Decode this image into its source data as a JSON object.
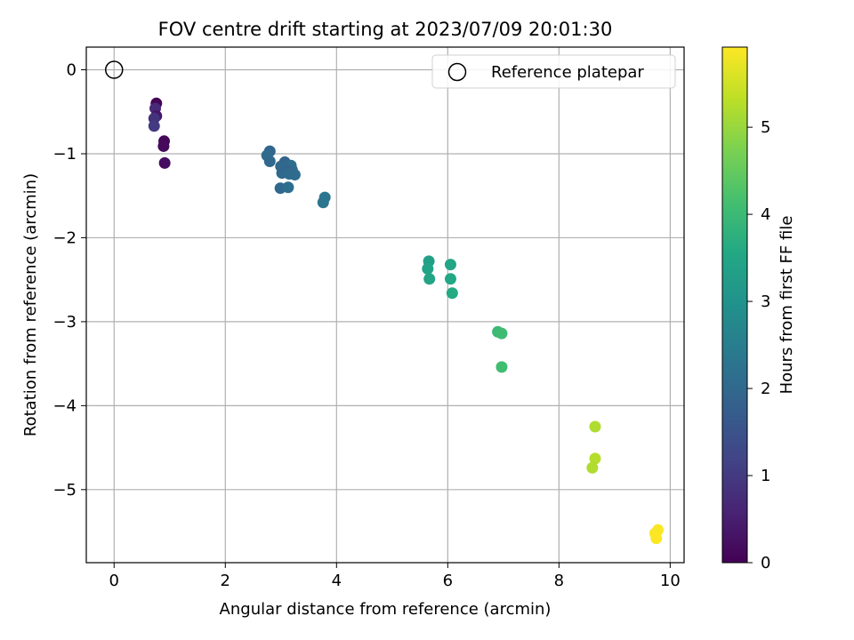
{
  "chart_data": {
    "type": "scatter",
    "title": "FOV centre drift starting at 2023/07/09 20:01:30",
    "xlabel": "Angular distance from reference (arcmin)",
    "ylabel": "Rotation from reference (arcmin)",
    "xlim": [
      -0.5,
      10.25
    ],
    "ylim": [
      -5.87,
      0.27
    ],
    "xticks": [
      0,
      2,
      4,
      6,
      8,
      10
    ],
    "xtick_labels": [
      "0",
      "2",
      "4",
      "6",
      "8",
      "10"
    ],
    "yticks": [
      0,
      -1,
      -2,
      -3,
      -4,
      -5
    ],
    "ytick_labels": [
      "0",
      "−1",
      "−2",
      "−3",
      "−4",
      "−5"
    ],
    "grid": true,
    "legend": {
      "placement": "top-right",
      "entries": [
        "Reference platepar"
      ]
    },
    "reference_point": {
      "x": 0,
      "y": 0,
      "label": "Reference platepar"
    },
    "colorbar": {
      "label": "Hours from first FF file",
      "colormap": "viridis",
      "range": [
        0,
        5.92
      ],
      "ticks": [
        0,
        1,
        2,
        3,
        4,
        5
      ],
      "tick_labels": [
        "0",
        "1",
        "2",
        "3",
        "4",
        "5"
      ]
    },
    "points": [
      {
        "x": 0.76,
        "y": -0.4,
        "c": 0.05
      },
      {
        "x": 0.74,
        "y": -0.46,
        "c": 0.7
      },
      {
        "x": 0.76,
        "y": -0.55,
        "c": 0.35
      },
      {
        "x": 0.72,
        "y": -0.58,
        "c": 0.85
      },
      {
        "x": 0.72,
        "y": -0.67,
        "c": 1.0
      },
      {
        "x": 0.9,
        "y": -0.85,
        "c": 0.1
      },
      {
        "x": 0.89,
        "y": -0.91,
        "c": 0.15
      },
      {
        "x": 0.91,
        "y": -1.11,
        "c": 0.2
      },
      {
        "x": 2.8,
        "y": -0.97,
        "c": 1.95
      },
      {
        "x": 2.75,
        "y": -1.02,
        "c": 2.05
      },
      {
        "x": 2.8,
        "y": -1.09,
        "c": 2.0
      },
      {
        "x": 3.07,
        "y": -1.1,
        "c": 1.9
      },
      {
        "x": 3.18,
        "y": -1.14,
        "c": 2.1
      },
      {
        "x": 3.0,
        "y": -1.15,
        "c": 1.95
      },
      {
        "x": 3.05,
        "y": -1.17,
        "c": 2.0
      },
      {
        "x": 3.2,
        "y": -1.19,
        "c": 2.05
      },
      {
        "x": 3.1,
        "y": -1.21,
        "c": 1.9
      },
      {
        "x": 3.02,
        "y": -1.23,
        "c": 2.0
      },
      {
        "x": 3.25,
        "y": -1.25,
        "c": 2.1
      },
      {
        "x": 3.15,
        "y": -1.24,
        "c": 2.05
      },
      {
        "x": 2.99,
        "y": -1.41,
        "c": 2.0
      },
      {
        "x": 3.13,
        "y": -1.4,
        "c": 2.1
      },
      {
        "x": 3.79,
        "y": -1.52,
        "c": 2.3
      },
      {
        "x": 3.76,
        "y": -1.58,
        "c": 2.3
      },
      {
        "x": 5.66,
        "y": -2.28,
        "c": 3.35
      },
      {
        "x": 5.64,
        "y": -2.37,
        "c": 3.4
      },
      {
        "x": 5.67,
        "y": -2.49,
        "c": 3.45
      },
      {
        "x": 6.05,
        "y": -2.32,
        "c": 3.5
      },
      {
        "x": 6.05,
        "y": -2.49,
        "c": 3.55
      },
      {
        "x": 6.08,
        "y": -2.66,
        "c": 3.6
      },
      {
        "x": 6.9,
        "y": -3.12,
        "c": 4.0
      },
      {
        "x": 6.97,
        "y": -3.14,
        "c": 4.05
      },
      {
        "x": 6.97,
        "y": -3.54,
        "c": 4.1
      },
      {
        "x": 8.65,
        "y": -4.25,
        "c": 5.2
      },
      {
        "x": 8.65,
        "y": -4.63,
        "c": 5.25
      },
      {
        "x": 8.6,
        "y": -4.74,
        "c": 5.2
      },
      {
        "x": 9.78,
        "y": -5.48,
        "c": 5.9
      },
      {
        "x": 9.73,
        "y": -5.52,
        "c": 5.88
      },
      {
        "x": 9.75,
        "y": -5.58,
        "c": 5.92
      }
    ]
  }
}
